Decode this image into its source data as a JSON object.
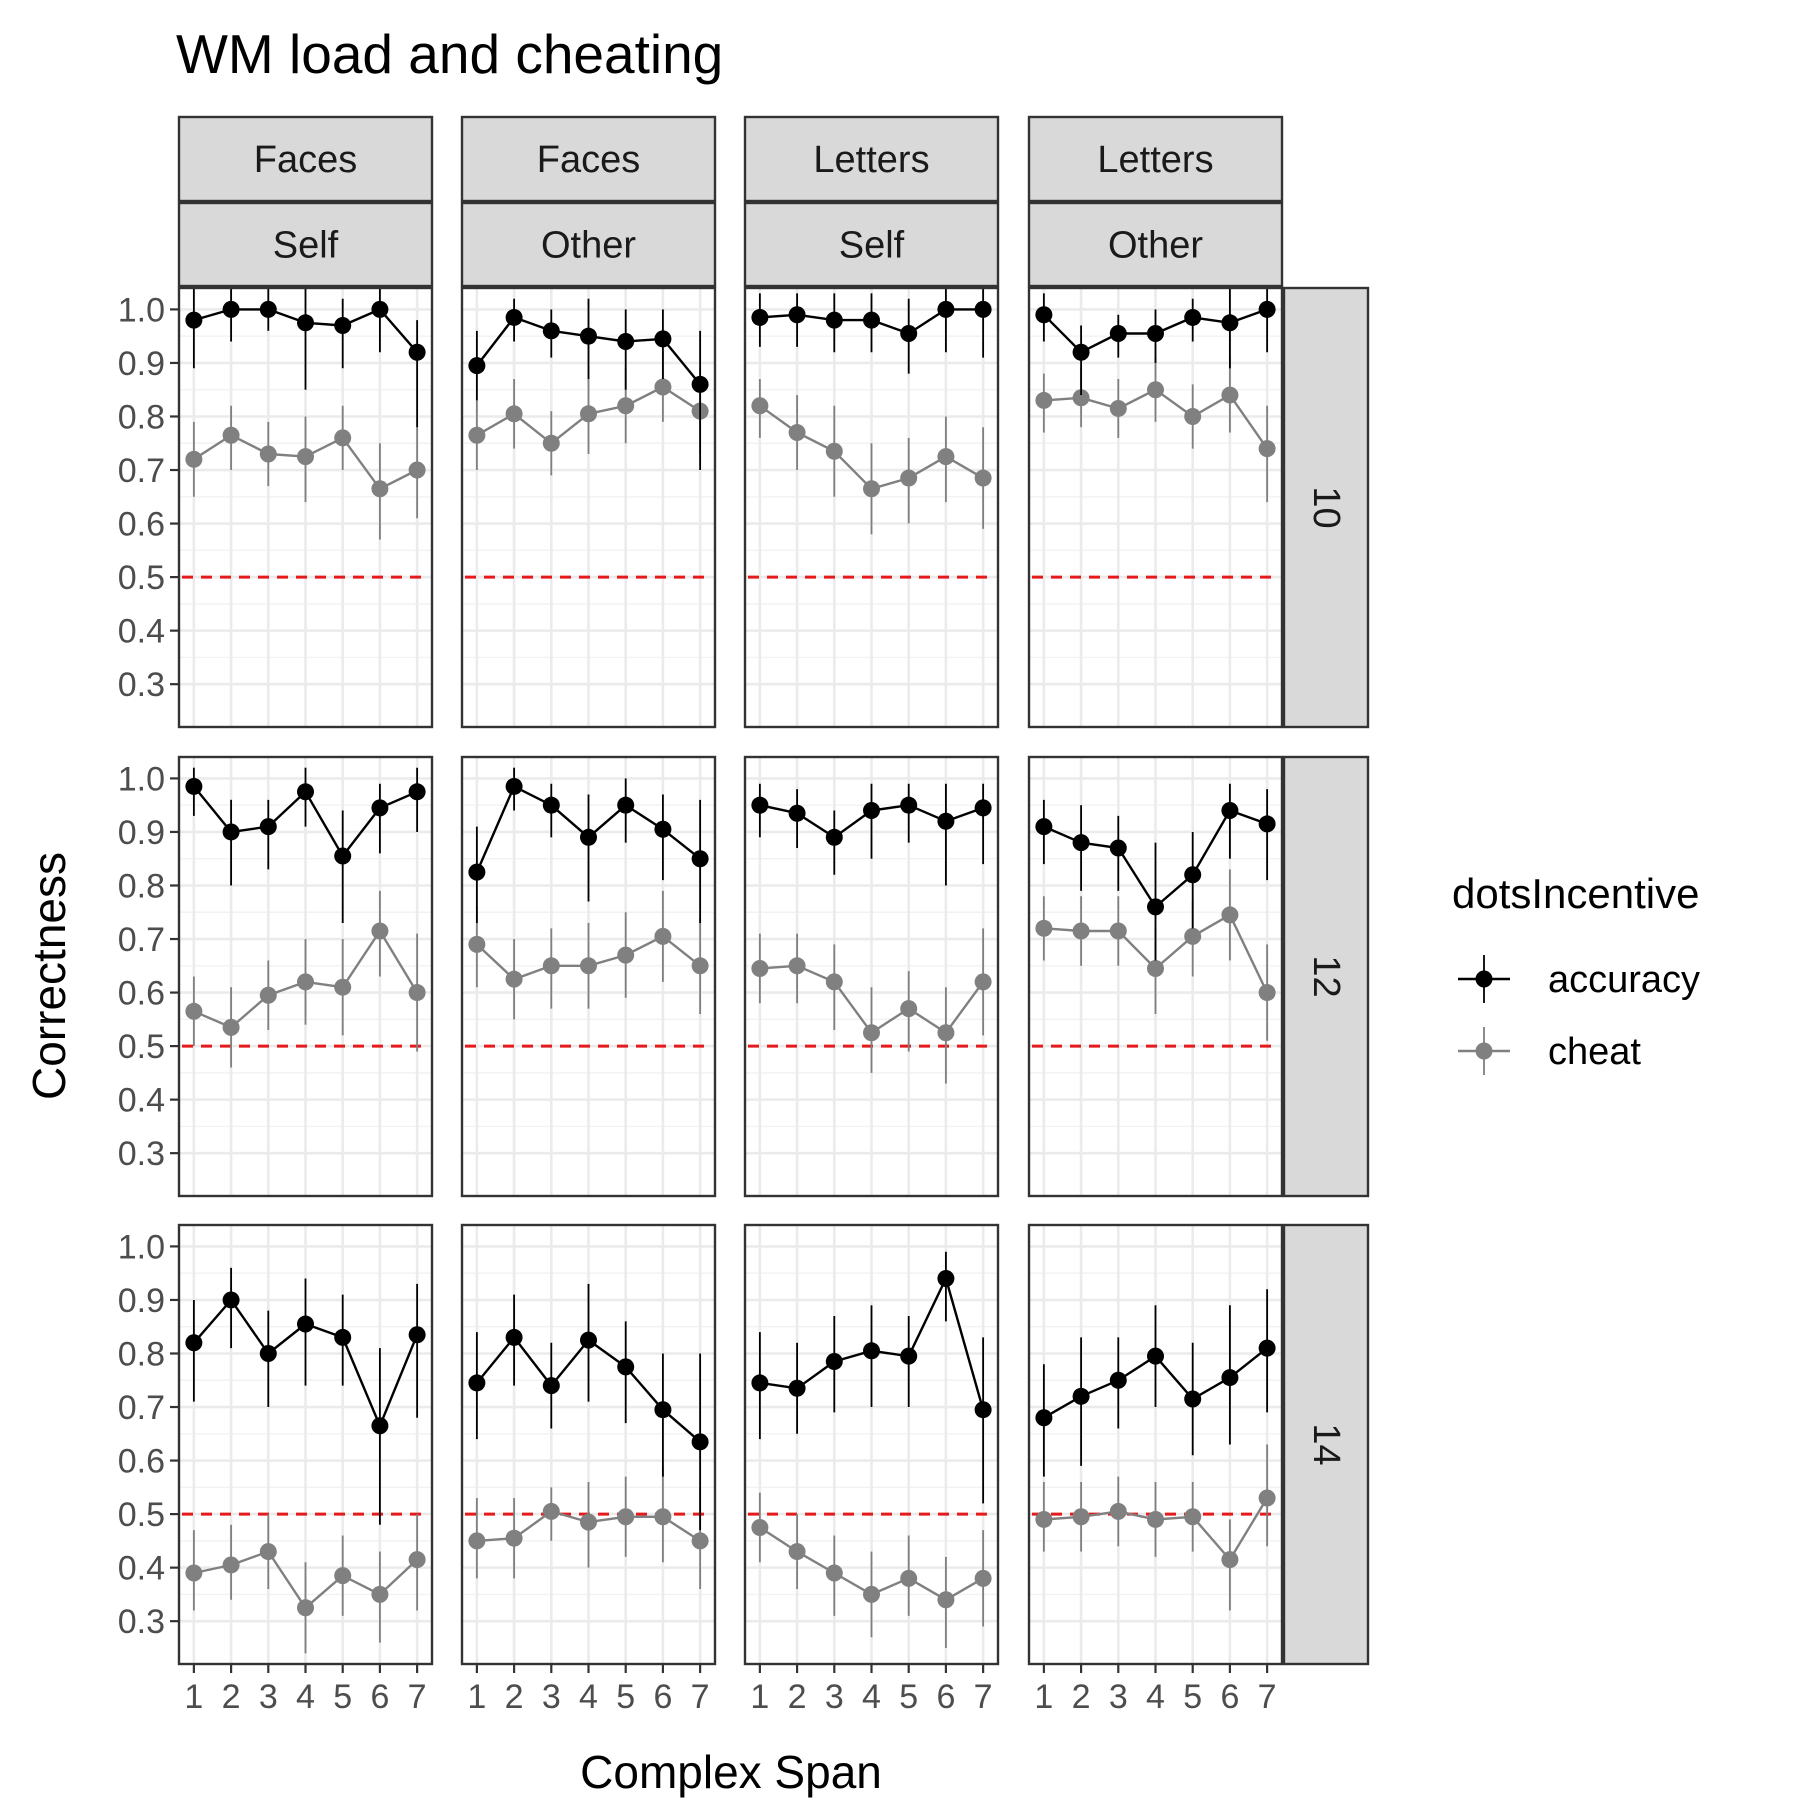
{
  "chart_data": {
    "type": "line",
    "title": "WM load and cheating",
    "xlabel": "Complex Span",
    "ylabel": "Correctness",
    "x": [
      1,
      2,
      3,
      4,
      5,
      6,
      7
    ],
    "x_tick_labels": [
      "1",
      "2",
      "3",
      "4",
      "5",
      "6",
      "7"
    ],
    "y_ticks": [
      1.0,
      0.9,
      0.8,
      0.7,
      0.6,
      0.5,
      0.4,
      0.3
    ],
    "y_tick_labels": [
      "1.0",
      "0.9",
      "0.8",
      "0.7",
      "0.6",
      "0.5",
      "0.4",
      "0.3"
    ],
    "ylim": [
      0.22,
      1.04
    ],
    "xlim": [
      0.6,
      7.4
    ],
    "reference_line": {
      "y": 0.5,
      "color": "#e41a1c",
      "style": "dashed"
    },
    "grid": true,
    "legend": {
      "title": "dotsIncentive",
      "position": "right",
      "entries": [
        {
          "label": "accuracy",
          "color": "#000000"
        },
        {
          "label": "cheat",
          "color": "#808080"
        }
      ]
    },
    "col_strips": [
      {
        "top": "Faces",
        "bottom": "Self"
      },
      {
        "top": "Faces",
        "bottom": "Other"
      },
      {
        "top": "Letters",
        "bottom": "Self"
      },
      {
        "top": "Letters",
        "bottom": "Other"
      }
    ],
    "row_strips": [
      "10",
      "12",
      "14"
    ],
    "panels": [
      [
        {
          "accuracy": [
            0.98,
            1.0,
            1.0,
            0.975,
            0.97,
            1.0,
            0.92
          ],
          "acc_err": [
            [
              0.89,
              1.04
            ],
            [
              0.94,
              1.04
            ],
            [
              0.96,
              1.04
            ],
            [
              0.85,
              1.04
            ],
            [
              0.89,
              1.02
            ],
            [
              0.92,
              1.04
            ],
            [
              0.78,
              0.98
            ]
          ],
          "cheat": [
            0.72,
            0.765,
            0.73,
            0.725,
            0.76,
            0.665,
            0.7
          ],
          "cheat_err": [
            [
              0.65,
              0.79
            ],
            [
              0.7,
              0.82
            ],
            [
              0.67,
              0.79
            ],
            [
              0.64,
              0.8
            ],
            [
              0.7,
              0.82
            ],
            [
              0.57,
              0.75
            ],
            [
              0.61,
              0.78
            ]
          ]
        },
        {
          "accuracy": [
            0.895,
            0.985,
            0.96,
            0.95,
            0.94,
            0.945,
            0.86
          ],
          "acc_err": [
            [
              0.83,
              0.96
            ],
            [
              0.94,
              1.02
            ],
            [
              0.91,
              1.0
            ],
            [
              0.87,
              1.02
            ],
            [
              0.85,
              1.0
            ],
            [
              0.87,
              1.0
            ],
            [
              0.7,
              0.96
            ]
          ],
          "cheat": [
            0.765,
            0.805,
            0.75,
            0.805,
            0.82,
            0.855,
            0.81
          ],
          "cheat_err": [
            [
              0.7,
              0.83
            ],
            [
              0.74,
              0.87
            ],
            [
              0.69,
              0.81
            ],
            [
              0.73,
              0.87
            ],
            [
              0.75,
              0.89
            ],
            [
              0.79,
              0.92
            ],
            [
              0.73,
              0.89
            ]
          ]
        },
        {
          "accuracy": [
            0.985,
            0.99,
            0.98,
            0.98,
            0.955,
            1.0,
            1.0
          ],
          "acc_err": [
            [
              0.93,
              1.03
            ],
            [
              0.93,
              1.03
            ],
            [
              0.92,
              1.03
            ],
            [
              0.92,
              1.03
            ],
            [
              0.88,
              1.02
            ],
            [
              0.92,
              1.04
            ],
            [
              0.91,
              1.04
            ]
          ],
          "cheat": [
            0.82,
            0.77,
            0.735,
            0.665,
            0.685,
            0.725,
            0.685
          ],
          "cheat_err": [
            [
              0.76,
              0.87
            ],
            [
              0.7,
              0.84
            ],
            [
              0.65,
              0.82
            ],
            [
              0.58,
              0.75
            ],
            [
              0.6,
              0.76
            ],
            [
              0.64,
              0.8
            ],
            [
              0.59,
              0.78
            ]
          ]
        },
        {
          "accuracy": [
            0.99,
            0.92,
            0.955,
            0.955,
            0.985,
            0.975,
            1.0
          ],
          "acc_err": [
            [
              0.94,
              1.03
            ],
            [
              0.84,
              0.97
            ],
            [
              0.91,
              0.99
            ],
            [
              0.9,
              1.0
            ],
            [
              0.94,
              1.02
            ],
            [
              0.89,
              1.04
            ],
            [
              0.92,
              1.04
            ]
          ],
          "cheat": [
            0.83,
            0.835,
            0.815,
            0.85,
            0.8,
            0.84,
            0.74
          ],
          "cheat_err": [
            [
              0.77,
              0.88
            ],
            [
              0.78,
              0.89
            ],
            [
              0.76,
              0.87
            ],
            [
              0.79,
              0.91
            ],
            [
              0.74,
              0.86
            ],
            [
              0.77,
              0.91
            ],
            [
              0.64,
              0.82
            ]
          ]
        }
      ],
      [
        {
          "accuracy": [
            0.985,
            0.9,
            0.91,
            0.975,
            0.855,
            0.945,
            0.975
          ],
          "acc_err": [
            [
              0.93,
              1.02
            ],
            [
              0.8,
              0.96
            ],
            [
              0.83,
              0.96
            ],
            [
              0.91,
              1.02
            ],
            [
              0.73,
              0.94
            ],
            [
              0.86,
              0.99
            ],
            [
              0.9,
              1.02
            ]
          ],
          "cheat": [
            0.565,
            0.535,
            0.595,
            0.62,
            0.61,
            0.715,
            0.6
          ],
          "cheat_err": [
            [
              0.5,
              0.63
            ],
            [
              0.46,
              0.61
            ],
            [
              0.53,
              0.66
            ],
            [
              0.54,
              0.7
            ],
            [
              0.52,
              0.7
            ],
            [
              0.63,
              0.79
            ],
            [
              0.49,
              0.71
            ]
          ]
        },
        {
          "accuracy": [
            0.825,
            0.985,
            0.95,
            0.89,
            0.95,
            0.905,
            0.85
          ],
          "acc_err": [
            [
              0.73,
              0.91
            ],
            [
              0.94,
              1.02
            ],
            [
              0.89,
              0.99
            ],
            [
              0.77,
              0.97
            ],
            [
              0.88,
              1.0
            ],
            [
              0.81,
              0.97
            ],
            [
              0.73,
              0.96
            ]
          ],
          "cheat": [
            0.69,
            0.625,
            0.65,
            0.65,
            0.67,
            0.705,
            0.65
          ],
          "cheat_err": [
            [
              0.61,
              0.76
            ],
            [
              0.55,
              0.7
            ],
            [
              0.57,
              0.72
            ],
            [
              0.57,
              0.73
            ],
            [
              0.59,
              0.75
            ],
            [
              0.62,
              0.79
            ],
            [
              0.56,
              0.74
            ]
          ]
        },
        {
          "accuracy": [
            0.95,
            0.935,
            0.89,
            0.94,
            0.95,
            0.92,
            0.945
          ],
          "acc_err": [
            [
              0.89,
              0.99
            ],
            [
              0.87,
              0.98
            ],
            [
              0.82,
              0.94
            ],
            [
              0.85,
              0.99
            ],
            [
              0.88,
              0.99
            ],
            [
              0.8,
              0.99
            ],
            [
              0.84,
              0.99
            ]
          ],
          "cheat": [
            0.645,
            0.65,
            0.62,
            0.525,
            0.57,
            0.525,
            0.62
          ],
          "cheat_err": [
            [
              0.58,
              0.71
            ],
            [
              0.58,
              0.71
            ],
            [
              0.53,
              0.69
            ],
            [
              0.45,
              0.61
            ],
            [
              0.49,
              0.64
            ],
            [
              0.43,
              0.61
            ],
            [
              0.52,
              0.72
            ]
          ]
        },
        {
          "accuracy": [
            0.91,
            0.88,
            0.87,
            0.76,
            0.82,
            0.94,
            0.915
          ],
          "acc_err": [
            [
              0.84,
              0.96
            ],
            [
              0.79,
              0.95
            ],
            [
              0.79,
              0.93
            ],
            [
              0.66,
              0.88
            ],
            [
              0.72,
              0.9
            ],
            [
              0.85,
              0.99
            ],
            [
              0.81,
              0.98
            ]
          ],
          "cheat": [
            0.72,
            0.715,
            0.715,
            0.645,
            0.705,
            0.745,
            0.6
          ],
          "cheat_err": [
            [
              0.66,
              0.78
            ],
            [
              0.65,
              0.78
            ],
            [
              0.65,
              0.78
            ],
            [
              0.56,
              0.72
            ],
            [
              0.63,
              0.77
            ],
            [
              0.66,
              0.83
            ],
            [
              0.51,
              0.69
            ]
          ]
        }
      ],
      [
        {
          "accuracy": [
            0.82,
            0.9,
            0.8,
            0.855,
            0.83,
            0.665,
            0.835
          ],
          "acc_err": [
            [
              0.71,
              0.9
            ],
            [
              0.81,
              0.96
            ],
            [
              0.7,
              0.88
            ],
            [
              0.74,
              0.94
            ],
            [
              0.74,
              0.91
            ],
            [
              0.48,
              0.81
            ],
            [
              0.68,
              0.93
            ]
          ],
          "cheat": [
            0.39,
            0.405,
            0.43,
            0.325,
            0.385,
            0.35,
            0.415
          ],
          "cheat_err": [
            [
              0.32,
              0.47
            ],
            [
              0.34,
              0.48
            ],
            [
              0.36,
              0.5
            ],
            [
              0.24,
              0.41
            ],
            [
              0.31,
              0.46
            ],
            [
              0.26,
              0.43
            ],
            [
              0.32,
              0.5
            ]
          ]
        },
        {
          "accuracy": [
            0.745,
            0.83,
            0.74,
            0.825,
            0.775,
            0.695,
            0.635
          ],
          "acc_err": [
            [
              0.64,
              0.84
            ],
            [
              0.74,
              0.91
            ],
            [
              0.66,
              0.82
            ],
            [
              0.71,
              0.93
            ],
            [
              0.67,
              0.86
            ],
            [
              0.57,
              0.8
            ],
            [
              0.47,
              0.8
            ]
          ],
          "cheat": [
            0.45,
            0.455,
            0.505,
            0.485,
            0.495,
            0.495,
            0.45
          ],
          "cheat_err": [
            [
              0.38,
              0.53
            ],
            [
              0.38,
              0.53
            ],
            [
              0.45,
              0.55
            ],
            [
              0.4,
              0.56
            ],
            [
              0.42,
              0.57
            ],
            [
              0.41,
              0.59
            ],
            [
              0.36,
              0.55
            ]
          ]
        },
        {
          "accuracy": [
            0.745,
            0.735,
            0.785,
            0.805,
            0.795,
            0.94,
            0.695
          ],
          "acc_err": [
            [
              0.64,
              0.84
            ],
            [
              0.65,
              0.82
            ],
            [
              0.69,
              0.87
            ],
            [
              0.7,
              0.89
            ],
            [
              0.7,
              0.87
            ],
            [
              0.86,
              0.99
            ],
            [
              0.52,
              0.83
            ]
          ],
          "cheat": [
            0.475,
            0.43,
            0.39,
            0.35,
            0.38,
            0.34,
            0.38
          ],
          "cheat_err": [
            [
              0.41,
              0.54
            ],
            [
              0.36,
              0.5
            ],
            [
              0.31,
              0.46
            ],
            [
              0.27,
              0.43
            ],
            [
              0.31,
              0.46
            ],
            [
              0.25,
              0.42
            ],
            [
              0.29,
              0.47
            ]
          ]
        },
        {
          "accuracy": [
            0.68,
            0.72,
            0.75,
            0.795,
            0.715,
            0.755,
            0.81
          ],
          "acc_err": [
            [
              0.57,
              0.78
            ],
            [
              0.59,
              0.83
            ],
            [
              0.66,
              0.83
            ],
            [
              0.7,
              0.89
            ],
            [
              0.61,
              0.82
            ],
            [
              0.63,
              0.89
            ],
            [
              0.69,
              0.92
            ]
          ],
          "cheat": [
            0.49,
            0.495,
            0.505,
            0.49,
            0.495,
            0.415,
            0.53
          ],
          "cheat_err": [
            [
              0.43,
              0.56
            ],
            [
              0.43,
              0.56
            ],
            [
              0.44,
              0.57
            ],
            [
              0.42,
              0.56
            ],
            [
              0.43,
              0.56
            ],
            [
              0.32,
              0.49
            ],
            [
              0.44,
              0.63
            ]
          ]
        }
      ]
    ]
  },
  "colors": {
    "accuracy": "#000000",
    "cheat": "#808080",
    "reference": "#e41a1c",
    "strip_fill": "#d9d9d9"
  }
}
